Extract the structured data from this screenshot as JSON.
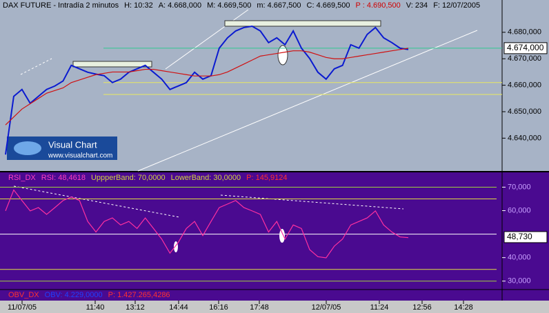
{
  "header": [
    {
      "text": "DAX FUTURE - Intradía 2 minutos",
      "color": "#000000"
    },
    {
      "text": "H: 10:32",
      "color": "#000000"
    },
    {
      "text": "A: 4.668,000",
      "color": "#000000"
    },
    {
      "text": "M: 4.669,500",
      "color": "#000000"
    },
    {
      "text": "m: 4.667,500",
      "color": "#000000"
    },
    {
      "text": "C: 4.669,500",
      "color": "#000000"
    },
    {
      "text": "P : 4.690,500",
      "color": "#d00000"
    },
    {
      "text": "V: 234",
      "color": "#000000"
    },
    {
      "text": "F: 12/07/2005",
      "color": "#000000"
    }
  ],
  "logo": {
    "title": "Visual Chart",
    "url": "www.visualchart.com"
  },
  "obv_legend": [
    {
      "text": "OBV_DX",
      "color": "#ff3030"
    },
    {
      "text": "OBV: 4.229,0000",
      "color": "#1e40ff"
    },
    {
      "text": "P: 1.427.265,4286",
      "color": "#ff3030"
    }
  ],
  "time_axis": [
    "11/07/05",
    "11:40",
    "13:12",
    "14:44",
    "16:16",
    "17:48",
    "12/07/05",
    "11:24",
    "12:56",
    "14:28"
  ],
  "chart_data": [
    {
      "type": "line",
      "ylim": [
        4627.6,
        4692.2
      ],
      "yticks": [
        {
          "value": 4640,
          "label": "4.640,000"
        },
        {
          "value": 4650,
          "label": "4.650,000"
        },
        {
          "value": 4660,
          "label": "4.660,000"
        },
        {
          "value": 4670,
          "label": "4.670,000"
        },
        {
          "value": 4680,
          "label": "4.680,000"
        }
      ],
      "last": {
        "value": 4674,
        "label": "4.674,000"
      },
      "levels": [
        {
          "value": 4674,
          "color": "#30c890"
        },
        {
          "value": 4661,
          "color": "#e8e860"
        },
        {
          "value": 4656.5,
          "color": "#e8e860"
        }
      ],
      "series": [
        {
          "color": "#0a1ad0",
          "values": [
            4633.8,
            4655.8,
            4658.4,
            4653.2,
            4655.8,
            4658.4,
            4659.7,
            4661.6,
            4667.5,
            4666.2,
            4664.9,
            4664.2,
            4663.6,
            4661,
            4662.3,
            4664.9,
            4666.2,
            4667.5,
            4664.9,
            4662.3,
            4658.4,
            4659.7,
            4661,
            4664.9,
            4662.3,
            4663.6,
            4674,
            4677.9,
            4680.5,
            4681.8,
            4682.3,
            4680.5,
            4676.1,
            4677.9,
            4675.3,
            4680.5,
            4674,
            4670.1,
            4664.9,
            4662.3,
            4666.2,
            4667.5,
            4675.3,
            4674,
            4679.2,
            4681.8,
            4677.9,
            4676.1,
            4674,
            4673.5
          ]
        },
        {
          "color": "#d01010",
          "values": [
            4645,
            4648,
            4651,
            4653,
            4655,
            4657,
            4658,
            4659,
            4661,
            4662,
            4663,
            4664,
            4664.5,
            4665,
            4665,
            4665,
            4665.5,
            4666,
            4666,
            4665.5,
            4665,
            4664.5,
            4664,
            4663.5,
            4663.5,
            4663.5,
            4664,
            4665,
            4666.5,
            4668,
            4669.5,
            4671,
            4671.5,
            4672,
            4672.5,
            4673,
            4673,
            4672.5,
            4671.5,
            4670.5,
            4670,
            4670,
            4670.5,
            4671,
            4671.5,
            4672,
            4672.5,
            4673,
            4673.5,
            4674
          ]
        }
      ]
    },
    {
      "type": "line",
      "legend": [
        {
          "text": "RSI_DX",
          "color": "#ff40c0"
        },
        {
          "text": "RSI: 48,4618",
          "color": "#ff40c0"
        },
        {
          "text": "UppperBand: 70,0000",
          "color": "#d0d040"
        },
        {
          "text": "LowerBand: 30,0000",
          "color": "#d0d040"
        },
        {
          "text": "P: 145,9124",
          "color": "#ff3030"
        }
      ],
      "ylim": [
        26.4,
        76.3
      ],
      "yticks": [
        {
          "value": 30,
          "label": "30,000"
        },
        {
          "value": 40,
          "label": "40,000"
        },
        {
          "value": 60,
          "label": "60,000"
        },
        {
          "value": 70,
          "label": "70,000"
        }
      ],
      "last": {
        "value": 48.73,
        "label": "48,730"
      },
      "levels": [
        {
          "value": 70,
          "color": "#a0d040"
        },
        {
          "value": 65,
          "color": "#e0e040"
        },
        {
          "value": 50,
          "color": "#ffffff"
        },
        {
          "value": 35,
          "color": "#e0e040"
        },
        {
          "value": 30,
          "color": "#a0d040"
        }
      ],
      "series": [
        {
          "color": "#ff30a0",
          "values": [
            59.9,
            68.8,
            64.3,
            59.9,
            61.3,
            58.4,
            61.3,
            64.3,
            65.8,
            64.3,
            55.4,
            50.9,
            55.4,
            56.9,
            53.9,
            55.4,
            52.4,
            56.9,
            52.4,
            47.9,
            41.9,
            46.4,
            52.4,
            55.4,
            49.4,
            55.4,
            61.3,
            62.8,
            64.3,
            61.3,
            59.9,
            58.4,
            50.9,
            55.4,
            47.9,
            53.9,
            52.4,
            43.4,
            40.4,
            39.9,
            44.9,
            47.9,
            53.9,
            55.4,
            56.9,
            59.9,
            53.9,
            50.9,
            48.8,
            48.5
          ]
        }
      ]
    }
  ]
}
